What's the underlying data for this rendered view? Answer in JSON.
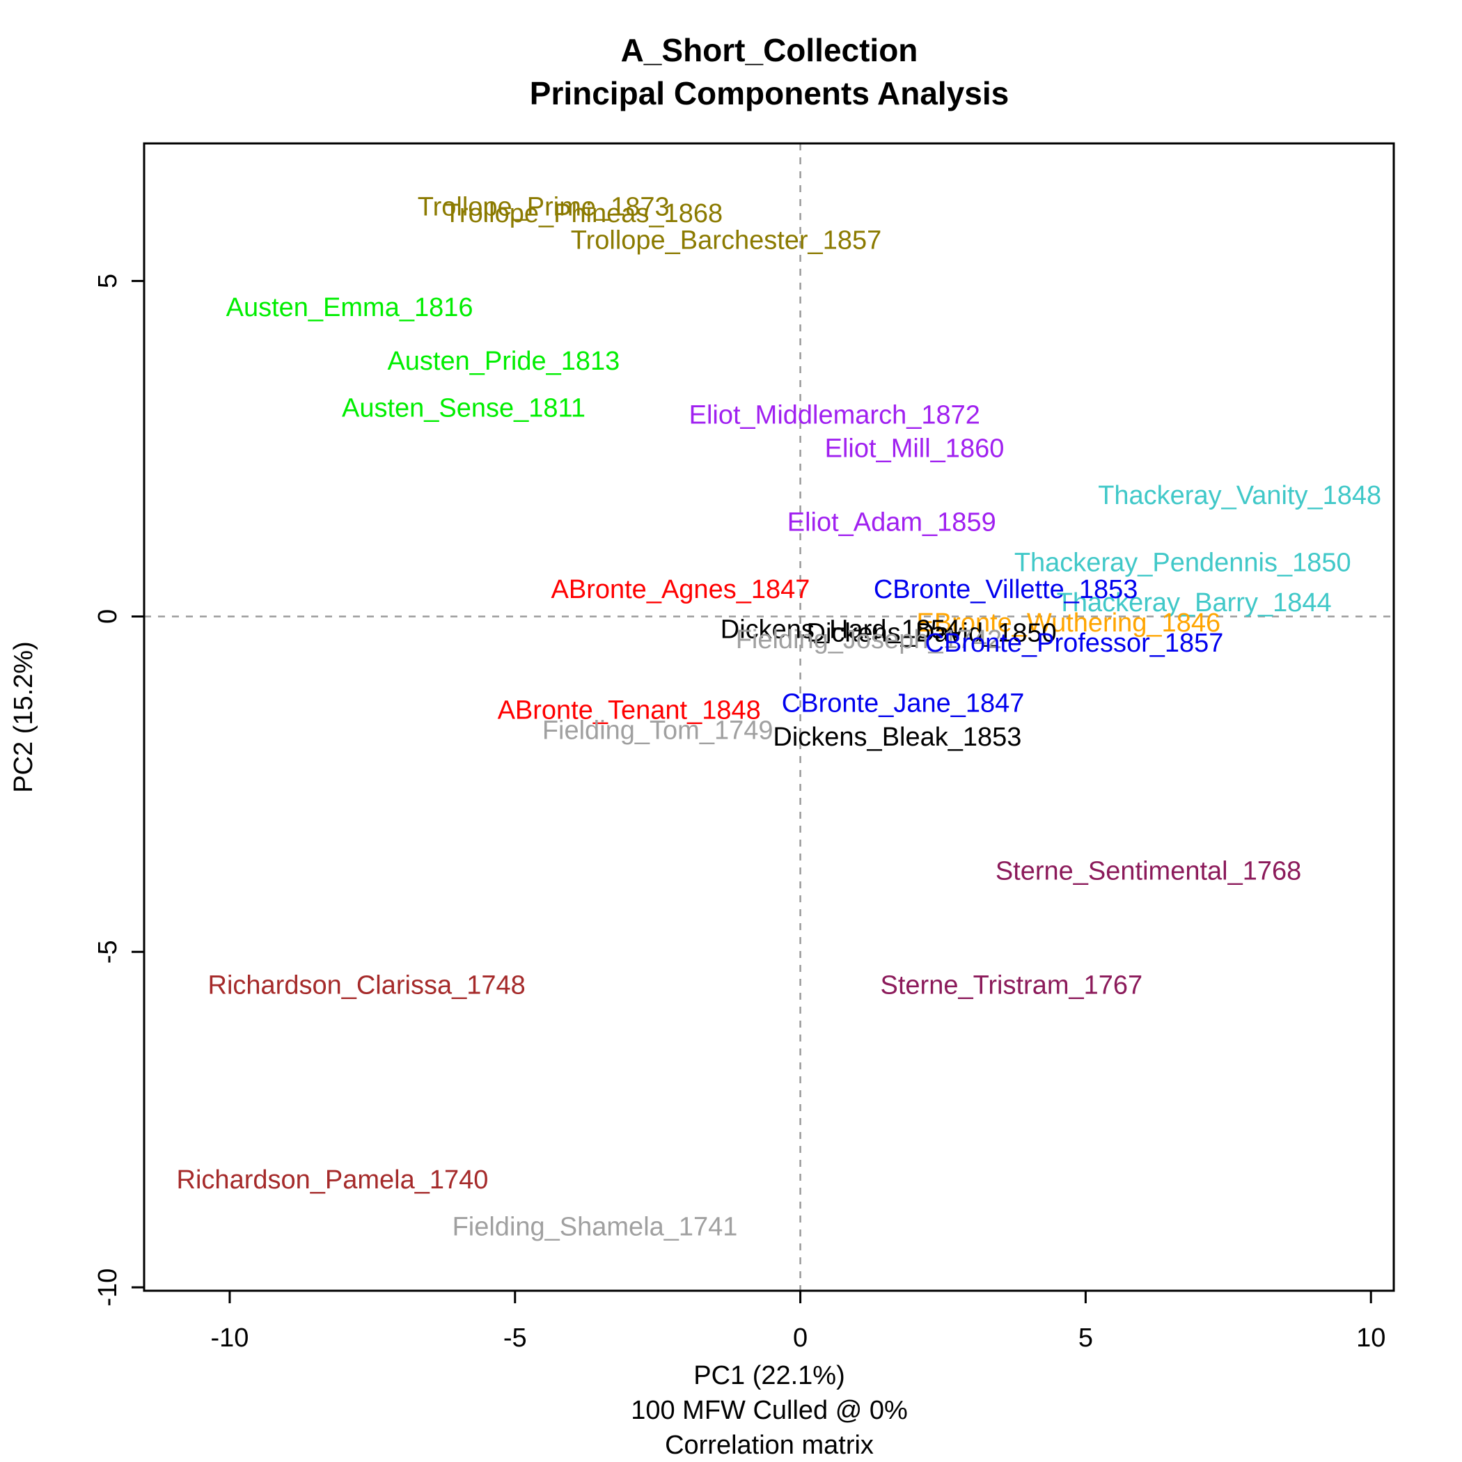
{
  "chart_data": {
    "type": "scatter",
    "title": [
      "A_Short_Collection",
      "Principal Components Analysis"
    ],
    "xlabel": [
      "PC1 (22.1%)",
      "100 MFW  Culled @ 0%",
      "Correlation matrix"
    ],
    "ylabel": "PC2 (15.2%)",
    "xlim": [
      -11.5,
      10.4
    ],
    "ylim": [
      -10.05,
      7.05
    ],
    "x_ticks": [
      -10,
      -5,
      0,
      5,
      10
    ],
    "y_ticks": [
      -10,
      -5,
      0,
      5
    ],
    "reference_lines": {
      "x": 0,
      "y": 0,
      "style": "dashed",
      "color": "#9a9a9a"
    },
    "grid": false,
    "legend": "none",
    "points": [
      {
        "label": "Trollope_Prime_1873",
        "x": -4.5,
        "y": 6.1,
        "color": "#8b7a00"
      },
      {
        "label": "Trollope_Phineas_1868",
        "x": -3.8,
        "y": 6.0,
        "color": "#8b7a00"
      },
      {
        "label": "Trollope_Barchester_1857",
        "x": -1.3,
        "y": 5.6,
        "color": "#8b7a00"
      },
      {
        "label": "Austen_Emma_1816",
        "x": -7.9,
        "y": 4.6,
        "color": "#00ee00"
      },
      {
        "label": "Austen_Pride_1813",
        "x": -5.2,
        "y": 3.8,
        "color": "#00ee00"
      },
      {
        "label": "Austen_Sense_1811",
        "x": -5.9,
        "y": 3.1,
        "color": "#00ee00"
      },
      {
        "label": "Eliot_Middlemarch_1872",
        "x": 0.6,
        "y": 3.0,
        "color": "#a020f0"
      },
      {
        "label": "Eliot_Mill_1860",
        "x": 2.0,
        "y": 2.5,
        "color": "#a020f0"
      },
      {
        "label": "Eliot_Adam_1859",
        "x": 1.6,
        "y": 1.4,
        "color": "#a020f0"
      },
      {
        "label": "Thackeray_Vanity_1848",
        "x": 7.7,
        "y": 1.8,
        "color": "#40c8c8"
      },
      {
        "label": "Thackeray_Pendennis_1850",
        "x": 6.7,
        "y": 0.8,
        "color": "#40c8c8"
      },
      {
        "label": "Thackeray_Barry_1844",
        "x": 6.9,
        "y": 0.2,
        "color": "#40c8c8"
      },
      {
        "label": "ABronte_Agnes_1847",
        "x": -2.1,
        "y": 0.4,
        "color": "#ff0000"
      },
      {
        "label": "CBronte_Villette_1853",
        "x": 3.6,
        "y": 0.4,
        "color": "#0000ee"
      },
      {
        "label": "EBronte_Wuthering_1846",
        "x": 4.7,
        "y": -0.1,
        "color": "#ffa500"
      },
      {
        "label": "Dickens_Hard_1854",
        "x": 0.7,
        "y": -0.2,
        "color": "#000000"
      },
      {
        "label": "Dickens_David_1850",
        "x": 2.3,
        "y": -0.25,
        "color": "#000000"
      },
      {
        "label": "Fielding_Joseph_1742",
        "x": 1.2,
        "y": -0.35,
        "color": "#a0a0a0"
      },
      {
        "label": "CBronte_Professor_1857",
        "x": 4.8,
        "y": -0.4,
        "color": "#0000ee"
      },
      {
        "label": "CBronte_Jane_1847",
        "x": 1.8,
        "y": -1.3,
        "color": "#0000ee"
      },
      {
        "label": "ABronte_Tenant_1848",
        "x": -3.0,
        "y": -1.4,
        "color": "#ff0000"
      },
      {
        "label": "Fielding_Tom_1749",
        "x": -2.5,
        "y": -1.7,
        "color": "#a0a0a0"
      },
      {
        "label": "Dickens_Bleak_1853",
        "x": 1.7,
        "y": -1.8,
        "color": "#000000"
      },
      {
        "label": "Sterne_Sentimental_1768",
        "x": 6.1,
        "y": -3.8,
        "color": "#8b1a5a"
      },
      {
        "label": "Sterne_Tristram_1767",
        "x": 3.7,
        "y": -5.5,
        "color": "#8b1a5a"
      },
      {
        "label": "Richardson_Clarissa_1748",
        "x": -7.6,
        "y": -5.5,
        "color": "#a52a2a"
      },
      {
        "label": "Richardson_Pamela_1740",
        "x": -8.2,
        "y": -8.4,
        "color": "#a52a2a"
      },
      {
        "label": "Fielding_Shamela_1741",
        "x": -3.6,
        "y": -9.1,
        "color": "#a0a0a0"
      }
    ]
  }
}
